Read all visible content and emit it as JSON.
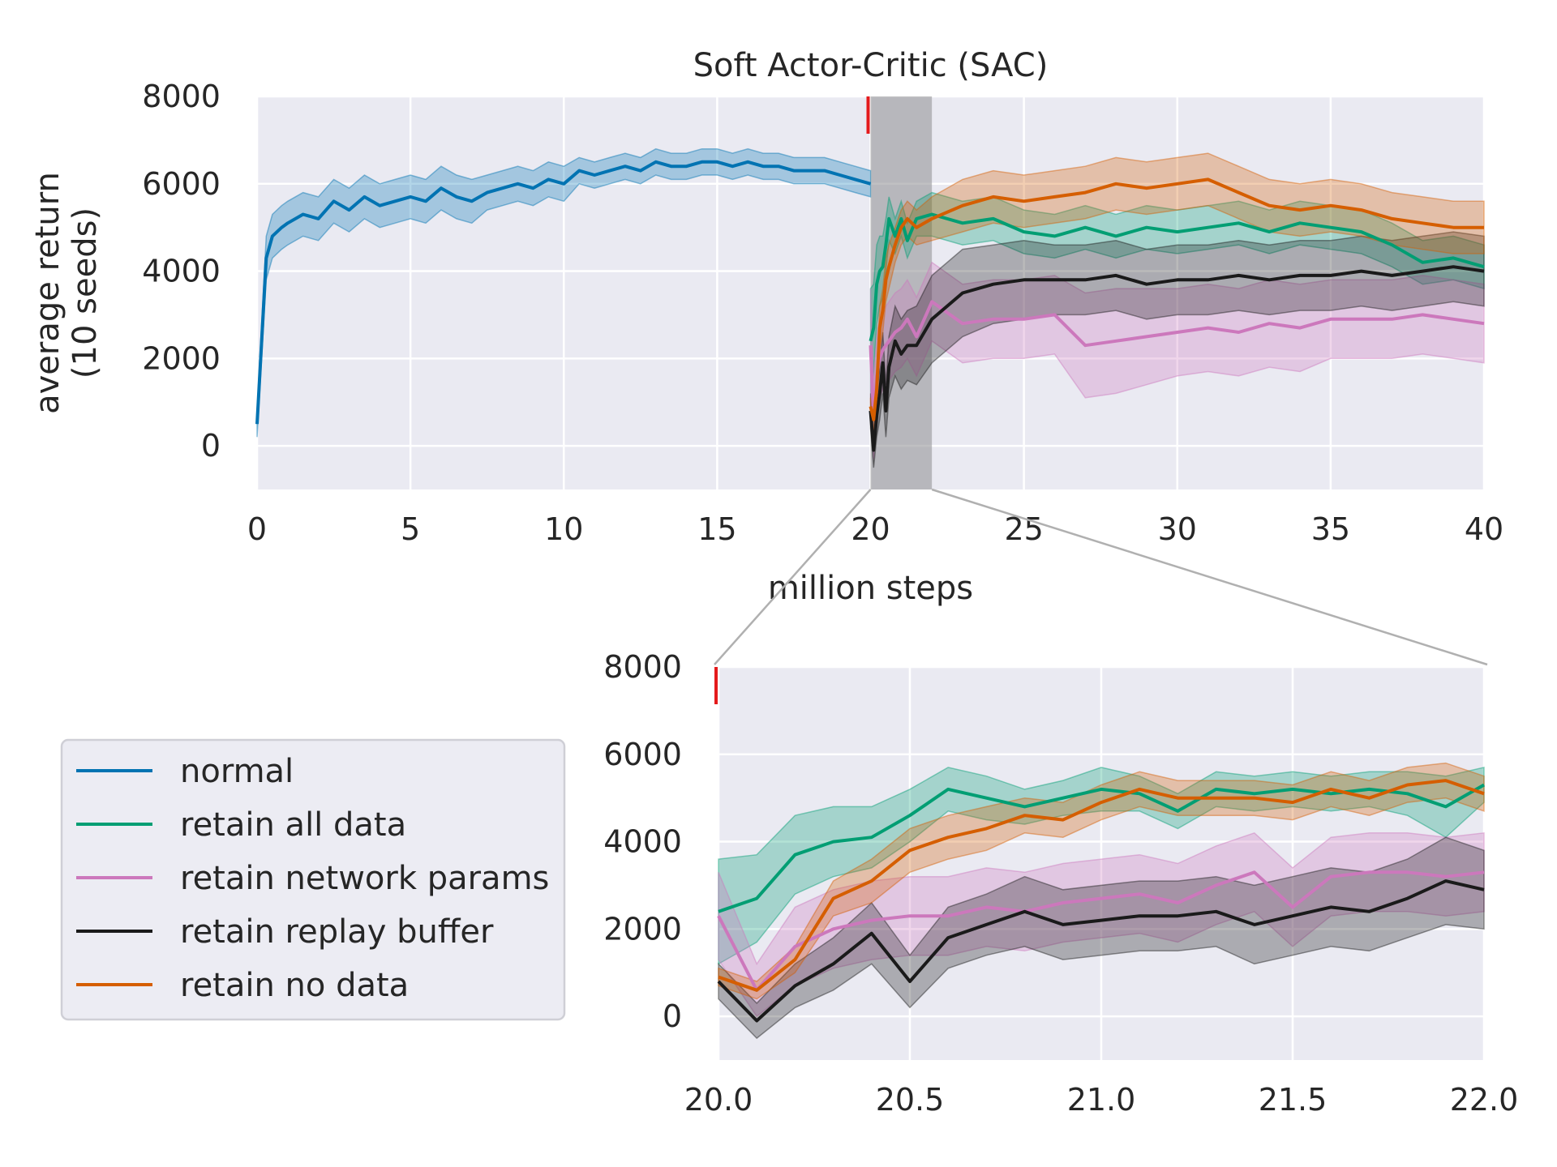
{
  "chart_data": [
    {
      "type": "line",
      "title": "Soft Actor-Critic (SAC)",
      "xlabel": "million steps",
      "ylabel": "average return\n(10 seeds)",
      "xlim": [
        0,
        40
      ],
      "ylim": [
        -1000,
        8000
      ],
      "xticks": [
        "0",
        "5",
        "10",
        "15",
        "20",
        "25",
        "30",
        "35",
        "40"
      ],
      "yticks": [
        "0",
        "2000",
        "4000",
        "6000",
        "8000"
      ],
      "grid": true,
      "highlight_span": [
        20,
        22
      ],
      "marker_x": 20,
      "series": [
        {
          "name": "normal",
          "color": "#0173b2",
          "x": [
            0,
            0.3,
            0.5,
            0.8,
            1,
            1.5,
            2,
            2.5,
            3,
            3.5,
            4,
            4.5,
            5,
            5.5,
            6,
            6.5,
            7,
            7.5,
            8,
            8.5,
            9,
            9.5,
            10,
            10.5,
            11,
            11.5,
            12,
            12.5,
            13,
            13.5,
            14,
            14.5,
            15,
            15.5,
            16,
            16.5,
            17,
            17.5,
            18,
            18.5,
            19,
            19.5,
            20
          ],
          "y": [
            500,
            4300,
            4800,
            5000,
            5100,
            5300,
            5200,
            5600,
            5400,
            5700,
            5500,
            5600,
            5700,
            5600,
            5900,
            5700,
            5600,
            5800,
            5900,
            6000,
            5900,
            6100,
            6000,
            6300,
            6200,
            6300,
            6400,
            6300,
            6500,
            6400,
            6400,
            6500,
            6500,
            6400,
            6500,
            6400,
            6400,
            6300,
            6300,
            6300,
            6200,
            6100,
            6000
          ],
          "band": [
            300,
            500,
            500,
            500,
            500,
            500,
            500,
            500,
            500,
            500,
            500,
            500,
            500,
            500,
            500,
            500,
            500,
            400,
            400,
            400,
            400,
            400,
            400,
            300,
            300,
            300,
            300,
            300,
            300,
            300,
            300,
            300,
            300,
            300,
            300,
            300,
            300,
            300,
            300,
            300,
            300,
            300,
            300
          ]
        },
        {
          "name": "retain all data",
          "color": "#029e73",
          "x": [
            20,
            20.1,
            20.2,
            20.3,
            20.4,
            20.5,
            20.6,
            20.8,
            21,
            21.2,
            21.5,
            22,
            23,
            24,
            25,
            26,
            27,
            28,
            29,
            30,
            31,
            32,
            33,
            34,
            35,
            36,
            37,
            38,
            39,
            40
          ],
          "y": [
            2400,
            2700,
            3700,
            4000,
            4100,
            4600,
            5200,
            4800,
            5200,
            4700,
            5200,
            5300,
            5100,
            5200,
            4900,
            4800,
            5000,
            4800,
            5000,
            4900,
            5000,
            5100,
            4900,
            5100,
            5000,
            4900,
            4600,
            4200,
            4300,
            4100
          ],
          "band": [
            1200,
            1000,
            900,
            800,
            700,
            600,
            500,
            400,
            400,
            400,
            400,
            500,
            500,
            500,
            500,
            500,
            500,
            500,
            500,
            500,
            500,
            500,
            500,
            500,
            500,
            500,
            500,
            500,
            500,
            500
          ]
        },
        {
          "name": "retain network params",
          "color": "#cc78bc",
          "x": [
            20,
            20.1,
            20.2,
            20.3,
            20.4,
            20.5,
            20.6,
            20.8,
            21,
            21.2,
            21.5,
            22,
            23,
            24,
            25,
            26,
            27,
            28,
            29,
            30,
            31,
            32,
            33,
            34,
            35,
            36,
            37,
            38,
            39,
            40
          ],
          "y": [
            2300,
            600,
            1600,
            2000,
            2200,
            2300,
            2400,
            2600,
            2700,
            2900,
            2500,
            3300,
            2800,
            2900,
            2900,
            3000,
            2300,
            2400,
            2500,
            2600,
            2700,
            2600,
            2800,
            2700,
            2900,
            2900,
            2900,
            3000,
            2900,
            2800
          ],
          "band": [
            1300,
            900,
            900,
            900,
            900,
            900,
            900,
            900,
            900,
            900,
            900,
            900,
            900,
            900,
            900,
            900,
            1200,
            1200,
            1100,
            1000,
            1000,
            1000,
            1000,
            1000,
            900,
            900,
            900,
            900,
            900,
            900
          ]
        },
        {
          "name": "retain replay buffer",
          "color": "#1a1a1a",
          "x": [
            20,
            20.1,
            20.2,
            20.3,
            20.4,
            20.5,
            20.6,
            20.8,
            21,
            21.2,
            21.5,
            22,
            23,
            24,
            25,
            26,
            27,
            28,
            29,
            30,
            31,
            32,
            33,
            34,
            35,
            36,
            37,
            38,
            39,
            40
          ],
          "y": [
            800,
            -100,
            700,
            1200,
            1900,
            800,
            1800,
            2400,
            2100,
            2300,
            2300,
            2900,
            3500,
            3700,
            3800,
            3800,
            3800,
            3900,
            3700,
            3800,
            3800,
            3900,
            3800,
            3900,
            3900,
            4000,
            3900,
            4000,
            4100,
            4000
          ],
          "band": [
            400,
            400,
            500,
            600,
            700,
            600,
            700,
            800,
            800,
            800,
            900,
            1000,
            1000,
            900,
            900,
            800,
            800,
            800,
            800,
            800,
            800,
            800,
            800,
            800,
            800,
            800,
            800,
            800,
            800,
            800
          ]
        },
        {
          "name": "retain no data",
          "color": "#d55e00",
          "x": [
            20,
            20.1,
            20.2,
            20.3,
            20.4,
            20.5,
            20.6,
            20.8,
            21,
            21.2,
            21.5,
            22,
            23,
            24,
            25,
            26,
            27,
            28,
            29,
            30,
            31,
            32,
            33,
            34,
            35,
            36,
            37,
            38,
            39,
            40
          ],
          "y": [
            900,
            600,
            1300,
            2700,
            3100,
            3800,
            4100,
            4600,
            5000,
            5200,
            5000,
            5200,
            5500,
            5700,
            5600,
            5700,
            5800,
            6000,
            5900,
            6000,
            6100,
            5800,
            5500,
            5400,
            5500,
            5400,
            5200,
            5100,
            5000,
            5000
          ],
          "band": [
            200,
            300,
            400,
            500,
            500,
            500,
            500,
            400,
            400,
            400,
            400,
            500,
            600,
            600,
            600,
            600,
            600,
            600,
            600,
            600,
            600,
            600,
            600,
            600,
            600,
            600,
            600,
            600,
            600,
            600
          ]
        }
      ]
    },
    {
      "type": "line",
      "title": "",
      "xlabel": "",
      "ylabel": "",
      "xlim": [
        20.0,
        22.0
      ],
      "ylim": [
        -1000,
        8000
      ],
      "xticks": [
        "20.0",
        "20.5",
        "21.0",
        "21.5",
        "22.0"
      ],
      "yticks": [
        "0",
        "2000",
        "4000",
        "6000",
        "8000"
      ],
      "grid": true,
      "marker_x": 20.0,
      "legend_placement": "left, outside",
      "series": [
        {
          "name": "retain all data",
          "color": "#029e73",
          "x": [
            20.0,
            20.1,
            20.2,
            20.3,
            20.4,
            20.5,
            20.6,
            20.7,
            20.8,
            20.9,
            21.0,
            21.1,
            21.2,
            21.3,
            21.4,
            21.5,
            21.6,
            21.7,
            21.8,
            21.9,
            22.0
          ],
          "y": [
            2400,
            2700,
            3700,
            4000,
            4100,
            4600,
            5200,
            5000,
            4800,
            5000,
            5200,
            5100,
            4700,
            5200,
            5100,
            5200,
            5100,
            5200,
            5100,
            4800,
            5300
          ],
          "band": [
            1200,
            1000,
            900,
            800,
            700,
            600,
            500,
            500,
            400,
            400,
            500,
            400,
            400,
            400,
            400,
            400,
            400,
            400,
            500,
            700,
            400
          ]
        },
        {
          "name": "retain network params",
          "color": "#cc78bc",
          "x": [
            20.0,
            20.1,
            20.2,
            20.3,
            20.4,
            20.5,
            20.6,
            20.7,
            20.8,
            20.9,
            21.0,
            21.1,
            21.2,
            21.3,
            21.4,
            21.5,
            21.6,
            21.7,
            21.8,
            21.9,
            22.0
          ],
          "y": [
            2300,
            600,
            1600,
            2000,
            2200,
            2300,
            2300,
            2500,
            2400,
            2600,
            2700,
            2800,
            2600,
            3000,
            3300,
            2500,
            3200,
            3300,
            3300,
            3200,
            3300
          ],
          "band": [
            1000,
            600,
            900,
            900,
            900,
            900,
            900,
            900,
            900,
            900,
            900,
            900,
            900,
            900,
            900,
            900,
            900,
            900,
            900,
            900,
            900
          ]
        },
        {
          "name": "retain replay buffer",
          "color": "#1a1a1a",
          "x": [
            20.0,
            20.1,
            20.2,
            20.3,
            20.4,
            20.5,
            20.6,
            20.7,
            20.8,
            20.9,
            21.0,
            21.1,
            21.2,
            21.3,
            21.4,
            21.5,
            21.6,
            21.7,
            21.8,
            21.9,
            22.0
          ],
          "y": [
            800,
            -100,
            700,
            1200,
            1900,
            800,
            1800,
            2100,
            2400,
            2100,
            2200,
            2300,
            2300,
            2400,
            2100,
            2300,
            2500,
            2400,
            2700,
            3100,
            2900
          ],
          "band": [
            400,
            400,
            500,
            600,
            700,
            600,
            700,
            700,
            800,
            800,
            800,
            800,
            800,
            800,
            900,
            900,
            900,
            900,
            900,
            1000,
            900
          ]
        },
        {
          "name": "retain no data",
          "color": "#d55e00",
          "x": [
            20.0,
            20.1,
            20.2,
            20.3,
            20.4,
            20.5,
            20.6,
            20.7,
            20.8,
            20.9,
            21.0,
            21.1,
            21.2,
            21.3,
            21.4,
            21.5,
            21.6,
            21.7,
            21.8,
            21.9,
            22.0
          ],
          "y": [
            900,
            600,
            1300,
            2700,
            3100,
            3800,
            4100,
            4300,
            4600,
            4500,
            4900,
            5200,
            5000,
            5000,
            5000,
            4900,
            5200,
            5000,
            5300,
            5400,
            5100
          ],
          "band": [
            200,
            200,
            300,
            400,
            500,
            500,
            500,
            500,
            400,
            400,
            400,
            400,
            400,
            400,
            400,
            400,
            400,
            400,
            400,
            400,
            400
          ]
        }
      ]
    }
  ],
  "legend": {
    "entries": [
      {
        "label": "normal",
        "color": "#0173b2"
      },
      {
        "label": "retain all data",
        "color": "#029e73"
      },
      {
        "label": "retain network params",
        "color": "#cc78bc"
      },
      {
        "label": "retain replay buffer",
        "color": "#1a1a1a"
      },
      {
        "label": "retain no data",
        "color": "#d55e00"
      }
    ]
  },
  "colors": {
    "axes_bg": "#eaeaf2",
    "grid": "#ffffff",
    "highlight": "#8c8c90",
    "marker": "#e41a1c",
    "connector": "#b0b0b0"
  }
}
